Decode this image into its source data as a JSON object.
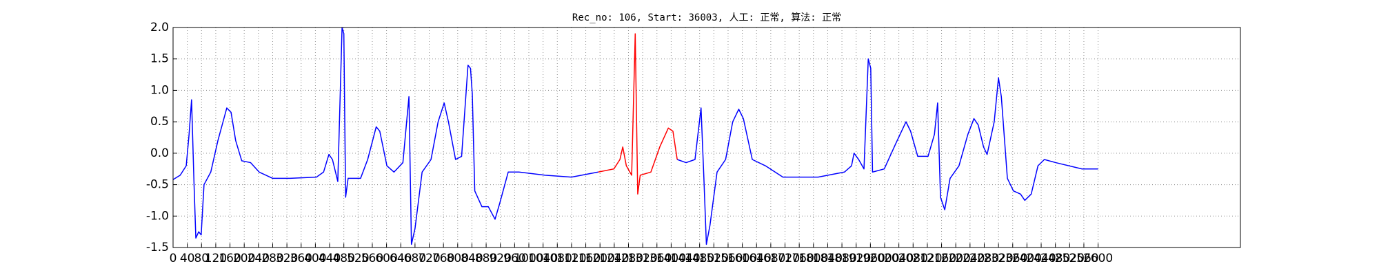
{
  "chart_data": {
    "type": "line",
    "title": "Rec_no: 106, Start: 36003, 人工: 正常, 算法: 正常",
    "xlim": [
      0,
      3000
    ],
    "ylim": [
      -1.5,
      2.0
    ],
    "xticks": [
      0,
      40,
      80,
      120,
      160,
      200,
      240,
      280,
      320,
      360,
      400,
      440,
      480,
      520,
      560,
      600,
      640,
      680,
      720,
      760,
      800,
      840,
      880,
      920,
      960,
      1000,
      1040,
      1080,
      1120,
      1160,
      1200,
      1240,
      1280,
      1320,
      1360,
      1400,
      1440,
      1480,
      1520,
      1560,
      1600,
      1640,
      1680,
      1720,
      1760,
      1800,
      1840,
      1880,
      1920,
      1960,
      2000,
      2040,
      2080,
      2120,
      2160,
      2200,
      2240,
      2280,
      2320,
      2360,
      2400,
      2440,
      2480,
      2520,
      2560,
      2600
    ],
    "yticks": [
      {
        "value": -1.5,
        "label": "-1.5"
      },
      {
        "value": -1.0,
        "label": "-1.0"
      },
      -0.5,
      {
        "value": 0.0,
        "label": "0.0"
      },
      0.5,
      {
        "value": 1.0,
        "label": "1.0"
      },
      1.5,
      {
        "value": 2.0,
        "label": "2.0"
      }
    ],
    "grid": true,
    "series": [
      {
        "color": "#0000ff",
        "x": [
          0,
          20,
          37,
          45,
          52,
          59,
          64,
          72,
          79,
          87,
          106,
          126,
          151,
          163,
          176,
          193,
          218,
          242,
          280,
          329,
          403,
          423,
          438,
          448,
          463,
          475,
          480,
          485,
          492,
          527,
          547,
          571,
          581,
          601,
          621,
          646,
          663,
          670,
          680,
          700,
          725,
          745,
          762,
          774,
          794,
          811,
          829,
          836,
          841,
          848,
          868,
          886,
          905,
          918,
          942,
          972,
          1046,
          1120,
          1195,
          1300,
          1417,
          1442,
          1467,
          1484,
          1492,
          1499,
          1509,
          1529,
          1553,
          1573,
          1590,
          1603,
          1628,
          1665,
          1714,
          1813,
          1887,
          1907,
          1914,
          1927,
          1942,
          1954,
          1961,
          1966,
          1999,
          2031,
          2060,
          2073,
          2093,
          2122,
          2140,
          2149,
          2157,
          2169,
          2184,
          2209,
          2234,
          2251,
          2263,
          2278,
          2288,
          2308,
          2320,
          2328,
          2345,
          2362,
          2382,
          2394,
          2412,
          2431,
          2449,
          2481,
          2555,
          2600
        ],
        "values": [
          -0.42,
          -0.35,
          -0.2,
          0.3,
          0.85,
          -0.5,
          -1.35,
          -1.25,
          -1.3,
          -0.5,
          -0.3,
          0.2,
          0.72,
          0.65,
          0.2,
          -0.12,
          -0.15,
          -0.3,
          -0.4,
          -0.4,
          -0.38,
          -0.3,
          -0.02,
          -0.1,
          -0.45,
          2.0,
          1.9,
          -0.7,
          -0.4,
          -0.4,
          -0.1,
          0.42,
          0.35,
          -0.2,
          -0.3,
          -0.15,
          0.9,
          -1.45,
          -1.2,
          -0.3,
          -0.1,
          0.5,
          0.8,
          0.5,
          -0.1,
          -0.05,
          1.4,
          1.35,
          0.95,
          -0.6,
          -0.85,
          -0.85,
          -1.05,
          -0.8,
          -0.3,
          -0.3,
          -0.35,
          -0.38,
          -0.3,
          null,
          -0.1,
          -0.15,
          -0.1,
          0.72,
          -0.4,
          -1.45,
          -1.15,
          -0.3,
          -0.1,
          0.5,
          0.7,
          0.55,
          -0.1,
          -0.2,
          -0.38,
          -0.38,
          -0.3,
          -0.2,
          0.0,
          -0.1,
          -0.25,
          1.5,
          1.35,
          -0.3,
          -0.25,
          0.15,
          0.5,
          0.35,
          -0.05,
          -0.05,
          0.3,
          0.8,
          -0.7,
          -0.9,
          -0.4,
          -0.2,
          0.3,
          0.55,
          0.45,
          0.1,
          -0.02,
          0.5,
          1.2,
          0.9,
          -0.4,
          -0.6,
          -0.65,
          -0.75,
          -0.65,
          -0.2,
          -0.1,
          -0.15,
          -0.25,
          -0.25
        ]
      },
      {
        "color": "#ff0000",
        "x": [
          1195,
          1239,
          1256,
          1264,
          1274,
          1289,
          1299,
          1306,
          1313,
          1343,
          1368,
          1392,
          1405,
          1417
        ],
        "values": [
          -0.3,
          -0.25,
          -0.1,
          0.1,
          -0.2,
          -0.35,
          1.9,
          -0.65,
          -0.35,
          -0.3,
          0.1,
          0.4,
          0.35,
          -0.1
        ]
      }
    ]
  }
}
